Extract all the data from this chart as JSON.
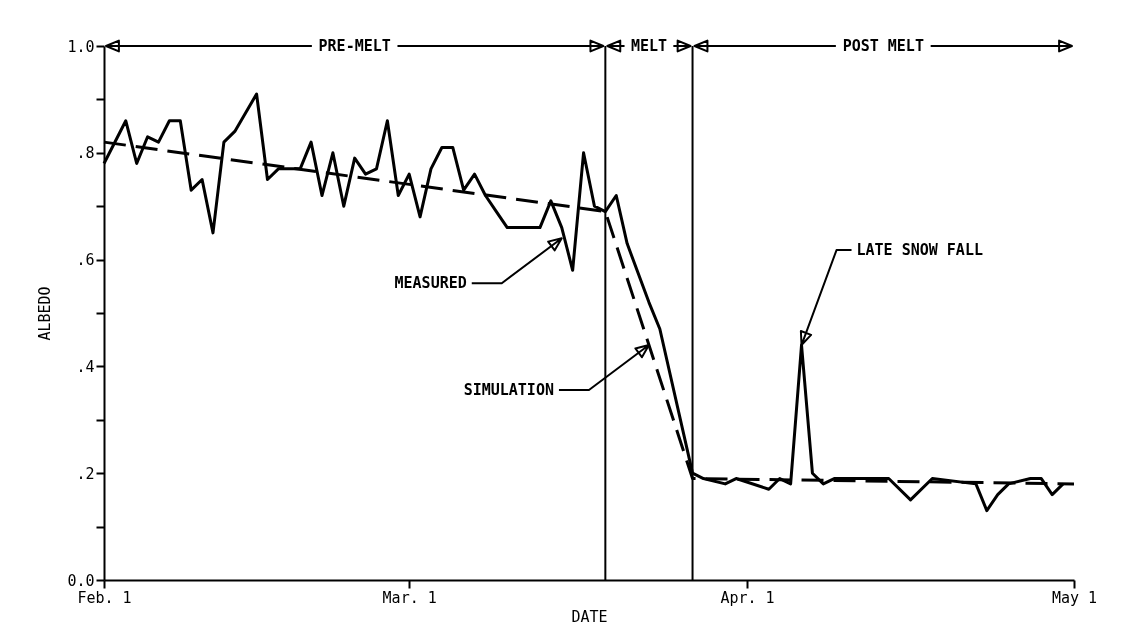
{
  "chart_data": {
    "type": "line",
    "xlabel": "DATE",
    "ylabel": "ALBEDO",
    "xlim": [
      "--02-01",
      "--05-01"
    ],
    "xticks": [
      {
        "value": "--02-01",
        "label": "Feb. 1"
      },
      {
        "value": "--03-01",
        "label": "Mar. 1"
      },
      {
        "value": "--04-01",
        "label": "Apr. 1"
      },
      {
        "value": "--05-01",
        "label": "May  1"
      }
    ],
    "ylim": [
      0,
      1
    ],
    "yticks": [
      {
        "value": 0,
        "label": "0.0"
      },
      {
        "value": 0.1,
        "label": null
      },
      {
        "value": 0.2,
        "label": ".2"
      },
      {
        "value": 0.3,
        "label": null
      },
      {
        "value": 0.4,
        "label": ".4"
      },
      {
        "value": 0.5,
        "label": null
      },
      {
        "value": 0.6,
        "label": ".6"
      },
      {
        "value": 0.7,
        "label": null
      },
      {
        "value": 0.8,
        "label": ".8"
      },
      {
        "value": 0.9,
        "label": null
      },
      {
        "value": 1,
        "label": "1.0"
      }
    ],
    "series": [
      {
        "color": "#000000",
        "line_style": "solid",
        "x": [
          "--02-01",
          "--02-03",
          "--02-04",
          "--02-05",
          "--02-06",
          "--02-07",
          "--02-08",
          "--02-09",
          "--02-10",
          "--02-11",
          "--02-12",
          "--02-13",
          "--02-15",
          "--02-16",
          "--02-17",
          "--02-19",
          "--02-20",
          "--02-21",
          "--02-22",
          "--02-23",
          "--02-24",
          "--02-25",
          "--02-26",
          "--02-27",
          "--02-28",
          "--03-01",
          "--03-02",
          "--03-03",
          "--03-04",
          "--03-05",
          "--03-06",
          "--03-07",
          "--03-08",
          "--03-09",
          "--03-10",
          "--03-13",
          "--03-14",
          "--03-15",
          "--03-16",
          "--03-17",
          "--03-18",
          "--03-19",
          "--03-20",
          "--03-21",
          "--03-23",
          "--03-24",
          "--03-27",
          "--03-28",
          "--03-30",
          "--03-31",
          "--04-03",
          "--04-04",
          "--04-05",
          "--04-06",
          "--04-07",
          "--04-08",
          "--04-09",
          "--04-11",
          "--04-14",
          "--04-16",
          "--04-18",
          "--04-22",
          "--04-23",
          "--04-24",
          "--04-25",
          "--04-27",
          "--04-28",
          "--04-29",
          "--04-30"
        ],
        "values": [
          0.78,
          0.86,
          0.78,
          0.83,
          0.82,
          0.86,
          0.86,
          0.73,
          0.75,
          0.65,
          0.82,
          0.84,
          0.91,
          0.75,
          0.77,
          0.77,
          0.82,
          0.72,
          0.8,
          0.7,
          0.79,
          0.76,
          0.77,
          0.86,
          0.72,
          0.76,
          0.68,
          0.77,
          0.81,
          0.81,
          0.73,
          0.76,
          0.72,
          0.69,
          0.66,
          0.66,
          0.71,
          0.66,
          0.58,
          0.8,
          0.7,
          0.69,
          0.72,
          0.63,
          0.52,
          0.47,
          0.2,
          0.19,
          0.18,
          0.19,
          0.17,
          0.19,
          0.18,
          0.44,
          0.2,
          0.18,
          0.19,
          0.19,
          0.19,
          0.15,
          0.19,
          0.18,
          0.13,
          0.16,
          0.18,
          0.19,
          0.19,
          0.16,
          0.18
        ]
      },
      {
        "color": "#000000",
        "line_style": "dashed",
        "x": [
          "--02-01",
          "--03-19",
          "--03-27",
          "--05-01"
        ],
        "values": [
          0.82,
          0.69,
          0.19,
          0.18
        ]
      }
    ],
    "ref_lines": [
      {
        "axis": "x",
        "value": "--03-19",
        "color": "#000000"
      },
      {
        "axis": "x",
        "value": "--03-27",
        "color": "#000000"
      }
    ],
    "annotations": [
      {
        "text": "PRE-MELT",
        "x": "--03-19",
        "y": 1
      },
      "MELT",
      {
        "text": "POST MELT",
        "x": "--03-27",
        "y": 1
      },
      {
        "text": "MEASURED",
        "x": "--03-15",
        "y": 0.64
      },
      {
        "text": "SIMULATION",
        "x": "--03-23",
        "y": 0.44
      },
      {
        "text": "LATE SNOW FALL",
        "x": "--04-06",
        "y": 0.44
      }
    ],
    "grid": false
  }
}
